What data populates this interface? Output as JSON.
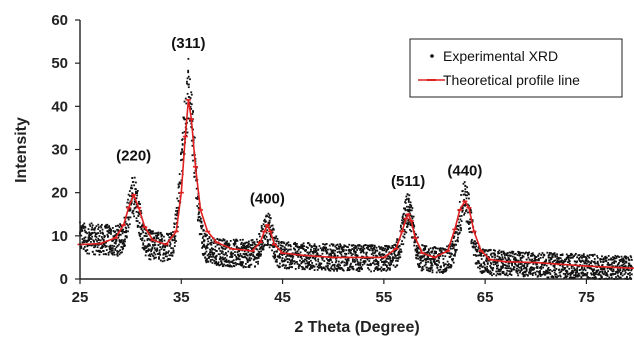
{
  "chart_data": {
    "type": "scatter",
    "xlabel": "2 Theta (Degree)",
    "ylabel": "Intensity",
    "xlim": [
      25,
      79.5
    ],
    "ylim": [
      0,
      60
    ],
    "x_ticks": [
      25,
      35,
      45,
      55,
      65,
      75
    ],
    "y_ticks": [
      0,
      10,
      20,
      30,
      40,
      50,
      60
    ],
    "grid": false,
    "legend_position": "top-right",
    "colors": {
      "experimental": "#111111",
      "theoretical": "#e02020",
      "axis": "#222222"
    },
    "series": [
      {
        "name": "Experimental XRD",
        "style": "points",
        "peaks": [
          {
            "center": 30.3,
            "height": 11.0,
            "width": 0.75
          },
          {
            "center": 35.7,
            "height": 34.0,
            "width": 0.9
          },
          {
            "center": 43.5,
            "height": 6.0,
            "width": 0.7
          },
          {
            "center": 57.4,
            "height": 11.0,
            "width": 0.75
          },
          {
            "center": 63.0,
            "height": 14.0,
            "width": 0.85
          }
        ],
        "baseline": [
          [
            25,
            9.5
          ],
          [
            28,
            9.0
          ],
          [
            33,
            7.5
          ],
          [
            40,
            6.0
          ],
          [
            50,
            5.0
          ],
          [
            60,
            4.5
          ],
          [
            68,
            3.5
          ],
          [
            79.5,
            2.5
          ]
        ],
        "max_point": {
          "x": 35.7,
          "y": 51
        }
      },
      {
        "name": "Theoretical profile line",
        "style": "line",
        "x": [
          25,
          27,
          28.5,
          29.3,
          29.8,
          30.3,
          30.8,
          31.4,
          32.2,
          33.5,
          34.5,
          35.0,
          35.4,
          35.7,
          36.0,
          36.4,
          36.9,
          37.6,
          38.5,
          40,
          42,
          42.8,
          43.2,
          43.5,
          43.8,
          44.2,
          45,
          47,
          50,
          53,
          55,
          56.2,
          56.8,
          57.2,
          57.4,
          57.7,
          58.1,
          58.8,
          60,
          61.3,
          62.0,
          62.5,
          63.0,
          63.4,
          63.9,
          64.6,
          65.5,
          67,
          70,
          75,
          79.5
        ],
        "y": [
          8,
          8.2,
          9.5,
          12.5,
          16.5,
          19.5,
          16.5,
          12,
          9,
          8,
          11,
          20,
          33,
          41.5,
          37,
          26,
          16,
          11,
          8.5,
          7,
          6.5,
          8.5,
          11,
          12.5,
          11,
          8,
          6,
          5.5,
          5,
          5,
          5,
          7,
          11,
          14,
          15,
          13.5,
          9.5,
          6,
          5,
          6.5,
          11.5,
          16,
          18,
          16.5,
          11,
          6.5,
          4.5,
          4,
          3.8,
          3,
          2.5
        ]
      }
    ],
    "peak_labels": [
      {
        "text": "(220)",
        "x": 30.3,
        "y": 27.5
      },
      {
        "text": "(311)",
        "x": 35.7,
        "y": 53.5
      },
      {
        "text": "(400)",
        "x": 43.5,
        "y": 17.5
      },
      {
        "text": "(511)",
        "x": 57.4,
        "y": 21.5
      },
      {
        "text": "(440)",
        "x": 63.0,
        "y": 24
      }
    ]
  }
}
